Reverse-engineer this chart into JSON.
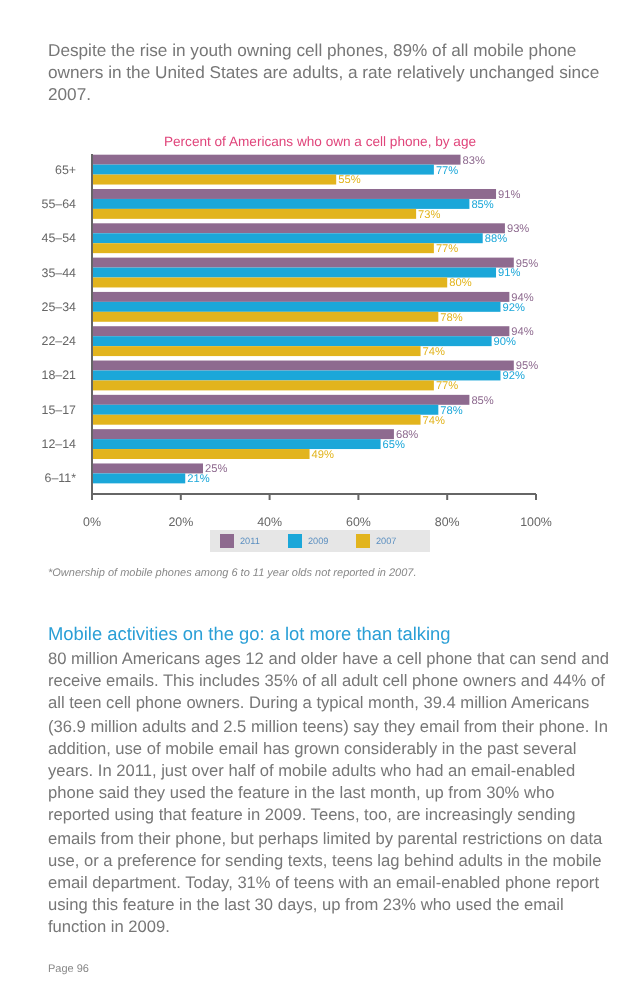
{
  "chart_data": {
    "type": "bar",
    "orientation": "horizontal",
    "title": "Percent of Americans who own a cell phone, by age",
    "categories": [
      "65+",
      "55–64",
      "45–54",
      "35–44",
      "25–34",
      "22–24",
      "18–21",
      "15–17",
      "12–14",
      "6–11*"
    ],
    "series": [
      {
        "name": "2011",
        "color": "#8e6a8f",
        "values": [
          83,
          91,
          93,
          95,
          94,
          94,
          95,
          85,
          68,
          25
        ],
        "value_labels": [
          "83%",
          "91%",
          "93%",
          "95%",
          "94%",
          "94%",
          "95%",
          "85%",
          "68%",
          "25%"
        ]
      },
      {
        "name": "2009",
        "color": "#1ba7d9",
        "values": [
          77,
          85,
          88,
          91,
          92,
          90,
          92,
          78,
          65,
          21
        ],
        "value_labels": [
          "77%",
          "85%",
          "88%",
          "91%",
          "92%",
          "90%",
          "92%",
          "78%",
          "65%",
          "21%"
        ]
      },
      {
        "name": "2007",
        "color": "#e2b41d",
        "values": [
          55,
          73,
          77,
          80,
          78,
          74,
          77,
          74,
          49,
          null
        ],
        "value_labels": [
          "55%",
          "73%",
          "77%",
          "80%",
          "78%",
          "74%",
          "77%",
          "74%",
          "49%",
          null
        ]
      }
    ],
    "xlim": [
      0,
      100
    ],
    "xticks": [
      {
        "value": 0,
        "label": "0%"
      },
      {
        "value": 20,
        "label": "20%"
      },
      {
        "value": 40,
        "label": "40%"
      },
      {
        "value": 60,
        "label": "60%"
      },
      {
        "value": 80,
        "label": "80%"
      },
      {
        "value": 100,
        "label": "100%"
      }
    ],
    "legend": "bottom",
    "grid": false,
    "annotations": [
      "Despite the rise in youth owning cell phones, 89% of all mobile phone owners in the United States are adults, a rate relatively unchanged since 2007.",
      "*Ownership of mobile phones among 6 to 11 year olds not reported in 2007.",
      "Mobile activities on the go: a lot more than talking",
      "80 million Americans ages 12 and older have a cell phone that can send and receive emails. This includes 35% of all adult cell phone owners and 44% of all teen cell phone owners. During a typical month, 39.4 million Americans (36.9 million adults and 2.5 million teens) say they email from their phone. In addition, use of mobile email has grown considerably in the past several years. In 2011, just over half of mobile adults who had an email-enabled phone said they used the feature in the last month, up from 30% who reported using that feature in 2009. Teens, too, are increasingly sending emails from their phone, but perhaps limited by parental restrictions on data use, or a preference for sending texts, teens lag behind adults in the mobile email department. Today, 31% of teens with an email-enabled phone report using this feature in the last 30 days, up from 23% who used the email function in 2009.",
      "Page 96"
    ]
  }
}
